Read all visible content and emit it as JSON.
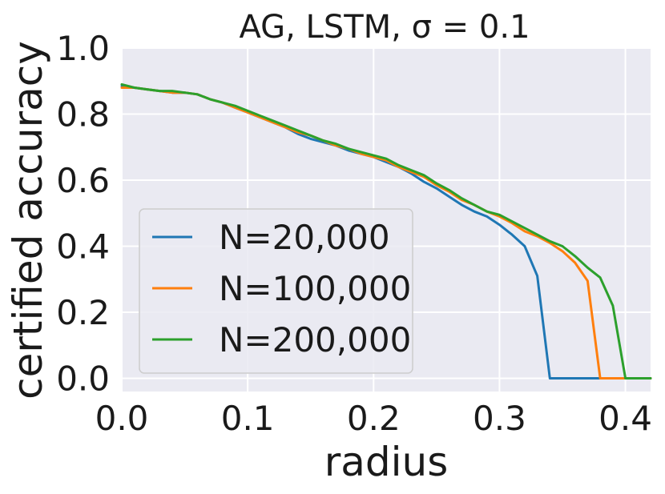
{
  "chart_data": {
    "type": "line",
    "title": "AG, LSTM, σ = 0.1",
    "xlabel": "radius",
    "ylabel": "certified accuracy",
    "xlim": [
      0.0,
      0.42
    ],
    "ylim": [
      -0.04,
      1.0
    ],
    "xticks": [
      "0.0",
      "0.1",
      "0.2",
      "0.3",
      "0.4"
    ],
    "yticks": [
      "0.0",
      "0.2",
      "0.4",
      "0.6",
      "0.8",
      "1.0"
    ],
    "grid": true,
    "legend_position": "lower-left",
    "background": "#eaeaf2",
    "series": [
      {
        "name": "N=20,000",
        "color": "#1f77b4",
        "x": [
          0.0,
          0.01,
          0.02,
          0.03,
          0.04,
          0.05,
          0.06,
          0.07,
          0.08,
          0.09,
          0.1,
          0.11,
          0.12,
          0.13,
          0.14,
          0.15,
          0.16,
          0.17,
          0.18,
          0.19,
          0.2,
          0.21,
          0.22,
          0.23,
          0.24,
          0.25,
          0.26,
          0.27,
          0.28,
          0.29,
          0.3,
          0.31,
          0.32,
          0.33,
          0.34,
          0.35,
          0.36,
          0.37,
          0.38,
          0.39,
          0.4,
          0.41,
          0.42
        ],
        "values": [
          0.885,
          0.88,
          0.875,
          0.87,
          0.865,
          0.865,
          0.86,
          0.845,
          0.835,
          0.82,
          0.805,
          0.79,
          0.775,
          0.76,
          0.74,
          0.725,
          0.715,
          0.705,
          0.69,
          0.68,
          0.67,
          0.655,
          0.64,
          0.62,
          0.595,
          0.575,
          0.55,
          0.525,
          0.505,
          0.49,
          0.465,
          0.435,
          0.4,
          0.31,
          0.0,
          0.0,
          0.0,
          0.0,
          0.0,
          0.0,
          0.0,
          0.0,
          0.0
        ]
      },
      {
        "name": "N=100,000",
        "color": "#ff7f0e",
        "x": [
          0.0,
          0.01,
          0.02,
          0.03,
          0.04,
          0.05,
          0.06,
          0.07,
          0.08,
          0.09,
          0.1,
          0.11,
          0.12,
          0.13,
          0.14,
          0.15,
          0.16,
          0.17,
          0.18,
          0.19,
          0.2,
          0.21,
          0.22,
          0.23,
          0.24,
          0.25,
          0.26,
          0.27,
          0.28,
          0.29,
          0.3,
          0.31,
          0.32,
          0.33,
          0.34,
          0.35,
          0.36,
          0.37,
          0.38,
          0.39,
          0.4,
          0.41,
          0.42
        ],
        "values": [
          0.88,
          0.88,
          0.875,
          0.87,
          0.865,
          0.865,
          0.86,
          0.845,
          0.835,
          0.82,
          0.805,
          0.79,
          0.775,
          0.76,
          0.745,
          0.735,
          0.72,
          0.705,
          0.695,
          0.68,
          0.67,
          0.66,
          0.64,
          0.625,
          0.61,
          0.585,
          0.565,
          0.54,
          0.525,
          0.505,
          0.49,
          0.47,
          0.445,
          0.43,
          0.41,
          0.385,
          0.35,
          0.295,
          0.0,
          0.0,
          0.0,
          0.0,
          0.0
        ]
      },
      {
        "name": "N=200,000",
        "color": "#2ca02c",
        "x": [
          0.0,
          0.01,
          0.02,
          0.03,
          0.04,
          0.05,
          0.06,
          0.07,
          0.08,
          0.09,
          0.1,
          0.11,
          0.12,
          0.13,
          0.14,
          0.15,
          0.16,
          0.17,
          0.18,
          0.19,
          0.2,
          0.21,
          0.22,
          0.23,
          0.24,
          0.25,
          0.26,
          0.27,
          0.28,
          0.29,
          0.3,
          0.31,
          0.32,
          0.33,
          0.34,
          0.35,
          0.36,
          0.37,
          0.38,
          0.39,
          0.4,
          0.41,
          0.42
        ],
        "values": [
          0.89,
          0.88,
          0.875,
          0.87,
          0.87,
          0.865,
          0.86,
          0.845,
          0.835,
          0.825,
          0.81,
          0.795,
          0.78,
          0.765,
          0.75,
          0.735,
          0.72,
          0.71,
          0.695,
          0.685,
          0.675,
          0.665,
          0.645,
          0.63,
          0.615,
          0.59,
          0.57,
          0.545,
          0.525,
          0.505,
          0.495,
          0.475,
          0.455,
          0.435,
          0.415,
          0.4,
          0.37,
          0.335,
          0.305,
          0.22,
          0.0,
          0.0,
          0.0
        ]
      }
    ]
  }
}
